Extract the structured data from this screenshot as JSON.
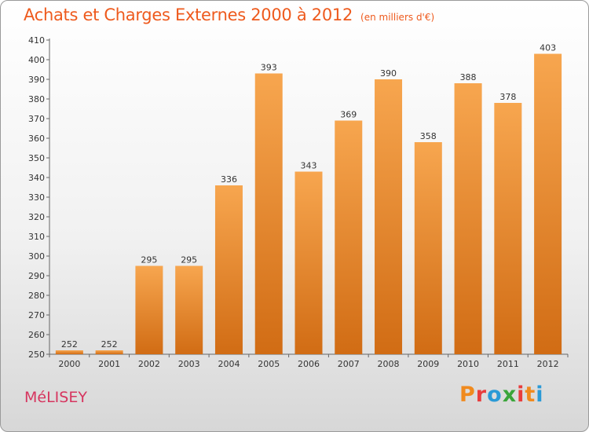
{
  "header": {
    "title": "Achats et Charges Externes 2000 à 2012",
    "unit": "(en milliers d'€)"
  },
  "footer": {
    "commune": "MéLISEY",
    "logo": [
      "P",
      "r",
      "o",
      "x",
      "i",
      "t",
      "i"
    ]
  },
  "colors": {
    "title": "#ee5a1d",
    "commune": "#d6355f",
    "bar_top": "#f7a64f",
    "bar_bottom": "#d16c14",
    "logo": [
      "#f08a1e",
      "#e83d3d",
      "#2a9ad6",
      "#3aa53a",
      "#e83d3d",
      "#f08a1e",
      "#2a9ad6"
    ]
  },
  "chart_data": {
    "type": "bar",
    "title": "Achats et Charges Externes 2000 à 2012",
    "subtitle": "(en milliers d'€)",
    "categories": [
      "2000",
      "2001",
      "2002",
      "2003",
      "2004",
      "2005",
      "2006",
      "2007",
      "2008",
      "2009",
      "2010",
      "2011",
      "2012"
    ],
    "values": [
      252,
      252,
      295,
      295,
      336,
      393,
      343,
      369,
      390,
      358,
      388,
      378,
      403
    ],
    "ylim": [
      250,
      410
    ],
    "yticks": [
      250,
      260,
      270,
      280,
      290,
      300,
      310,
      320,
      330,
      340,
      350,
      360,
      370,
      380,
      390,
      400,
      410
    ],
    "grid": false,
    "xlabel": "",
    "ylabel": ""
  }
}
